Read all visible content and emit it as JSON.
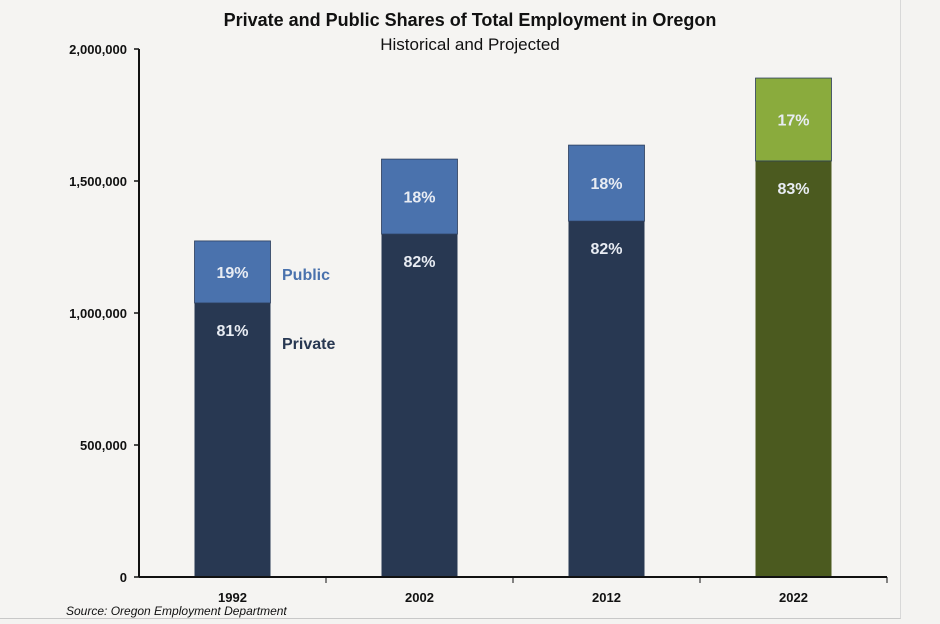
{
  "chart_data": {
    "type": "bar",
    "stacked": true,
    "title": "Private and Public Shares of Total Employment in Oregon",
    "subtitle": "Historical and Projected",
    "categories": [
      "1992",
      "2002",
      "2012",
      "2022"
    ],
    "series": [
      {
        "name": "Private",
        "values": [
          1038000,
          1299000,
          1348000,
          1576000
        ],
        "labels": [
          "81%",
          "82%",
          "82%",
          "83%"
        ],
        "colors": [
          "#283852",
          "#283852",
          "#283852",
          "#4b5a1f"
        ]
      },
      {
        "name": "Public",
        "values": [
          235000,
          284000,
          288000,
          314000
        ],
        "labels": [
          "19%",
          "18%",
          "18%",
          "17%"
        ],
        "colors": [
          "#4a72ad",
          "#4a72ad",
          "#4a72ad",
          "#8aab3d"
        ]
      }
    ],
    "legend_labels": {
      "public": "Public",
      "private": "Private",
      "public_color": "#4a72ad",
      "private_color": "#283852"
    },
    "ylim": [
      0,
      2000000
    ],
    "yticks": [
      "0",
      "500,000",
      "1,000,000",
      "1,500,000",
      "2,000,000"
    ],
    "ytick_values": [
      0,
      500000,
      1000000,
      1500000,
      2000000
    ],
    "grid": false,
    "xlabel": "",
    "ylabel": "",
    "source": "Source: Oregon Employment Department"
  }
}
